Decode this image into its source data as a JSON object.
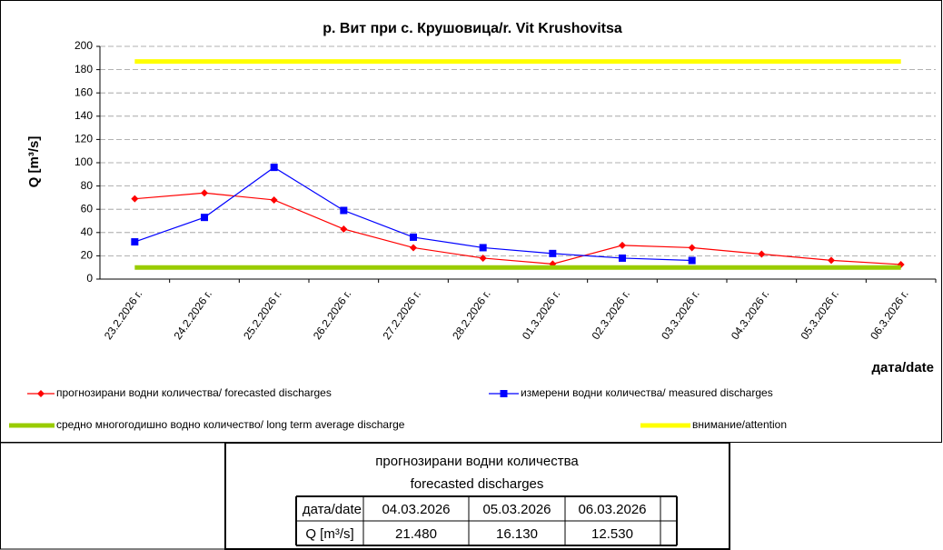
{
  "chart_data": {
    "type": "line",
    "title": "р. Вит при с. Крушовица/r. Vit Krushovitsa",
    "ylabel": "Q [m³/s]",
    "xlabel": "дата/date",
    "categories": [
      "23.2.2026 г.",
      "24.2.2026 г.",
      "25.2.2026 г.",
      "26.2.2026 г.",
      "27.2.2026 г.",
      "28.2.2026 г.",
      "01.3.2026 г.",
      "02.3.2026 г.",
      "03.3.2026 г.",
      "04.3.2026 г.",
      "05.3.2026 г.",
      "06.3.2026 г."
    ],
    "series": [
      {
        "name": "прогнозирани водни количества/ forecasted discharges",
        "color": "#ff0000",
        "marker": "diamond",
        "values": [
          69,
          74,
          68,
          43,
          27,
          18,
          13,
          29,
          27,
          21.48,
          16.13,
          12.53
        ]
      },
      {
        "name": "измерени водни количества/ measured discharges",
        "color": "#0000ff",
        "marker": "square",
        "values": [
          32,
          53,
          96,
          59,
          36,
          27,
          22,
          18,
          16,
          null,
          null,
          null
        ]
      },
      {
        "name": "средно многогодишно водно количество/ long term average discharge",
        "color": "#99cc00",
        "marker": "none",
        "values": [
          10,
          10,
          10,
          10,
          10,
          10,
          10,
          10,
          10,
          10,
          10,
          10
        ]
      },
      {
        "name": "внимание/attention",
        "color": "#ffff00",
        "marker": "none",
        "values": [
          187,
          187,
          187,
          187,
          187,
          187,
          187,
          187,
          187,
          187,
          187,
          187
        ]
      }
    ],
    "ylim": [
      0,
      200
    ],
    "yticks": [
      0,
      20,
      40,
      60,
      80,
      100,
      120,
      140,
      160,
      180,
      200
    ],
    "grid": true
  },
  "table": {
    "title": [
      "прогнозирани водни количества",
      "forecasted discharges"
    ],
    "header": [
      "дата/date",
      "04.03.2026",
      "05.03.2026",
      "06.03.2026"
    ],
    "row": [
      "Q [m³/s]",
      "21.480",
      "16.130",
      "12.530"
    ]
  }
}
